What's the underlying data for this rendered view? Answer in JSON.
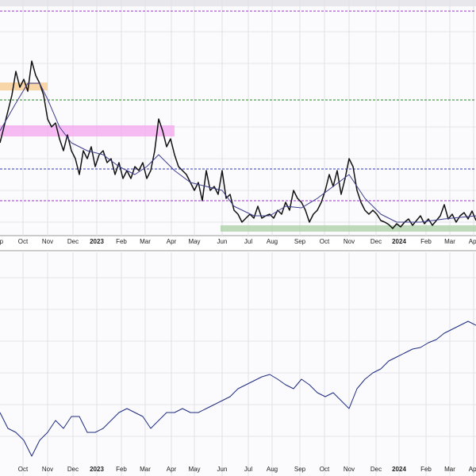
{
  "chart_data": [
    {
      "type": "line",
      "xlim": [
        0,
        120
      ],
      "ylim": [
        0,
        297
      ],
      "xticks": [
        {
          "value": -0.6,
          "label": "Sep"
        },
        {
          "value": 5.8,
          "label": "Oct"
        },
        {
          "value": 12,
          "label": "Nov"
        },
        {
          "value": 18.4,
          "label": "Dec"
        },
        {
          "value": 24.4,
          "label": "2023"
        },
        {
          "value": 30.6,
          "label": "Feb"
        },
        {
          "value": 36.6,
          "label": "Mar"
        },
        {
          "value": 43.2,
          "label": "Apr"
        },
        {
          "value": 49,
          "label": "May"
        },
        {
          "value": 56,
          "label": "Jun"
        },
        {
          "value": 62.6,
          "label": "Jul"
        },
        {
          "value": 68.6,
          "label": "Aug"
        },
        {
          "value": 75.6,
          "label": "Sep"
        },
        {
          "value": 81.8,
          "label": "Oct"
        },
        {
          "value": 88,
          "label": "Nov"
        },
        {
          "value": 94.8,
          "label": "Dec"
        },
        {
          "value": 100.6,
          "label": "2024"
        },
        {
          "value": 107.4,
          "label": "Feb"
        },
        {
          "value": 113.4,
          "label": "Mar"
        },
        {
          "value": 119.4,
          "label": "Apr"
        }
      ],
      "grid": true,
      "reference_lines": [
        {
          "value": 283,
          "color": "#9b2fc9"
        },
        {
          "value": 171,
          "color": "#1f8a1f"
        },
        {
          "value": 84,
          "color": "#3333bb"
        },
        {
          "value": 44,
          "color": "#9b2fc9"
        }
      ],
      "zones": [
        {
          "x": [
            0,
            12
          ],
          "y": [
            183,
            193
          ],
          "color": "#f7c98a"
        },
        {
          "x": [
            0,
            44
          ],
          "y": [
            125,
            139
          ],
          "color": "#f4a6ef"
        },
        {
          "x": [
            55.6,
            120
          ],
          "y": [
            5,
            13
          ],
          "color": "#a9cfa4"
        }
      ],
      "series": [
        {
          "color": "#111111",
          "width": 1.5,
          "x": [
            0,
            1,
            2,
            3,
            4,
            5,
            6,
            7,
            8,
            9,
            10,
            11,
            12,
            13,
            14,
            15,
            16,
            17,
            18,
            19,
            20,
            21,
            22,
            23,
            24,
            25,
            26,
            27,
            28,
            29,
            30,
            31,
            32,
            33,
            34,
            35,
            36,
            37,
            38,
            39,
            40,
            41,
            42,
            43,
            44,
            45,
            46,
            47,
            48,
            49,
            50,
            51,
            52,
            53,
            54,
            55,
            56,
            57,
            58,
            59,
            60,
            61,
            62,
            63,
            64,
            65,
            66,
            67,
            68,
            69,
            70,
            71,
            72,
            73,
            74,
            75,
            76,
            77,
            78,
            79,
            80,
            81,
            82,
            83,
            84,
            85,
            86,
            87,
            88,
            89,
            90,
            91,
            92,
            93,
            94,
            95,
            96,
            97,
            98,
            99,
            100,
            101,
            102,
            103,
            104,
            105,
            106,
            107,
            108,
            109,
            110,
            111,
            112,
            113,
            114,
            115,
            116,
            117,
            118,
            119,
            120
          ],
          "values": [
            117,
            137,
            157,
            177,
            207,
            187,
            197,
            182,
            220,
            202,
            192,
            177,
            147,
            137,
            142,
            122,
            107,
            127,
            107,
            97,
            77,
            107,
            97,
            112,
            87,
            102,
            107,
            92,
            97,
            77,
            92,
            72,
            82,
            72,
            87,
            82,
            92,
            72,
            82,
            107,
            147,
            132,
            112,
            122,
            102,
            87,
            82,
            77,
            67,
            57,
            67,
            44,
            82,
            57,
            62,
            52,
            82,
            47,
            52,
            32,
            27,
            17,
            22,
            27,
            22,
            37,
            22,
            25,
            27,
            22,
            32,
            27,
            42,
            32,
            57,
            47,
            42,
            32,
            17,
            27,
            32,
            42,
            57,
            77,
            62,
            82,
            52,
            72,
            97,
            87,
            57,
            42,
            32,
            27,
            32,
            27,
            19,
            17,
            14,
            9,
            15,
            11,
            17,
            21,
            13,
            19,
            25,
            15,
            21,
            13,
            19,
            25,
            39,
            21,
            27,
            17,
            25,
            29,
            21,
            31,
            19
          ]
        },
        {
          "color": "#3d3d8c",
          "width": 1,
          "x": [
            0,
            4,
            7,
            10,
            12,
            15,
            18,
            22,
            26,
            30,
            34,
            37,
            40,
            44,
            48,
            52,
            56,
            59,
            64,
            68,
            72,
            76,
            80,
            84,
            88,
            92,
            96,
            100,
            106,
            112,
            120
          ],
          "values": [
            132,
            167,
            192,
            192,
            172,
            137,
            117,
            107,
            102,
            87,
            77,
            87,
            102,
            82,
            67,
            62,
            57,
            37,
            25,
            25,
            37,
            35,
            47,
            62,
            77,
            47,
            27,
            17,
            17,
            21,
            25
          ]
        }
      ]
    },
    {
      "type": "line",
      "xlim": [
        0,
        120
      ],
      "ylim": [
        0,
        282
      ],
      "xticks": [
        {
          "value": 5.8,
          "label": "Oct"
        },
        {
          "value": 12,
          "label": "Nov"
        },
        {
          "value": 18.4,
          "label": "Dec"
        },
        {
          "value": 24.4,
          "label": "2023"
        },
        {
          "value": 30.6,
          "label": "Feb"
        },
        {
          "value": 36.6,
          "label": "Mar"
        },
        {
          "value": 43.2,
          "label": "Apr"
        },
        {
          "value": 49,
          "label": "May"
        },
        {
          "value": 56,
          "label": "Jun"
        },
        {
          "value": 62.6,
          "label": "Jul"
        },
        {
          "value": 68.6,
          "label": "Aug"
        },
        {
          "value": 75.6,
          "label": "Sep"
        },
        {
          "value": 81.8,
          "label": "Oct"
        },
        {
          "value": 88,
          "label": "Nov"
        },
        {
          "value": 94.8,
          "label": "Dec"
        },
        {
          "value": 100.6,
          "label": "2024"
        },
        {
          "value": 107.4,
          "label": "Feb"
        },
        {
          "value": 113.4,
          "label": "Mar"
        },
        {
          "value": 119.4,
          "label": "Apr"
        }
      ],
      "grid": true,
      "series": [
        {
          "color": "#1c2a80",
          "width": 1,
          "x": [
            0,
            2,
            4,
            6,
            8,
            10,
            12,
            14,
            16,
            18,
            20,
            22,
            24,
            26,
            28,
            30,
            32,
            34,
            36,
            38,
            40,
            42,
            44,
            46,
            48,
            50,
            52,
            54,
            56,
            58,
            60,
            62,
            64,
            66,
            68,
            70,
            72,
            74,
            76,
            78,
            80,
            82,
            84,
            86,
            88,
            90,
            92,
            94,
            96,
            98,
            100,
            102,
            104,
            106,
            108,
            110,
            112,
            114,
            116,
            118,
            120
          ],
          "values": [
            80,
            60,
            55,
            45,
            25,
            45,
            55,
            70,
            60,
            75,
            75,
            55,
            55,
            60,
            70,
            80,
            85,
            80,
            75,
            60,
            70,
            80,
            80,
            85,
            80,
            80,
            85,
            90,
            95,
            100,
            110,
            115,
            120,
            125,
            128,
            122,
            115,
            110,
            122,
            115,
            105,
            100,
            105,
            95,
            85,
            110,
            122,
            130,
            135,
            145,
            150,
            155,
            160,
            162,
            168,
            172,
            180,
            185,
            190,
            195,
            190
          ]
        }
      ]
    }
  ]
}
